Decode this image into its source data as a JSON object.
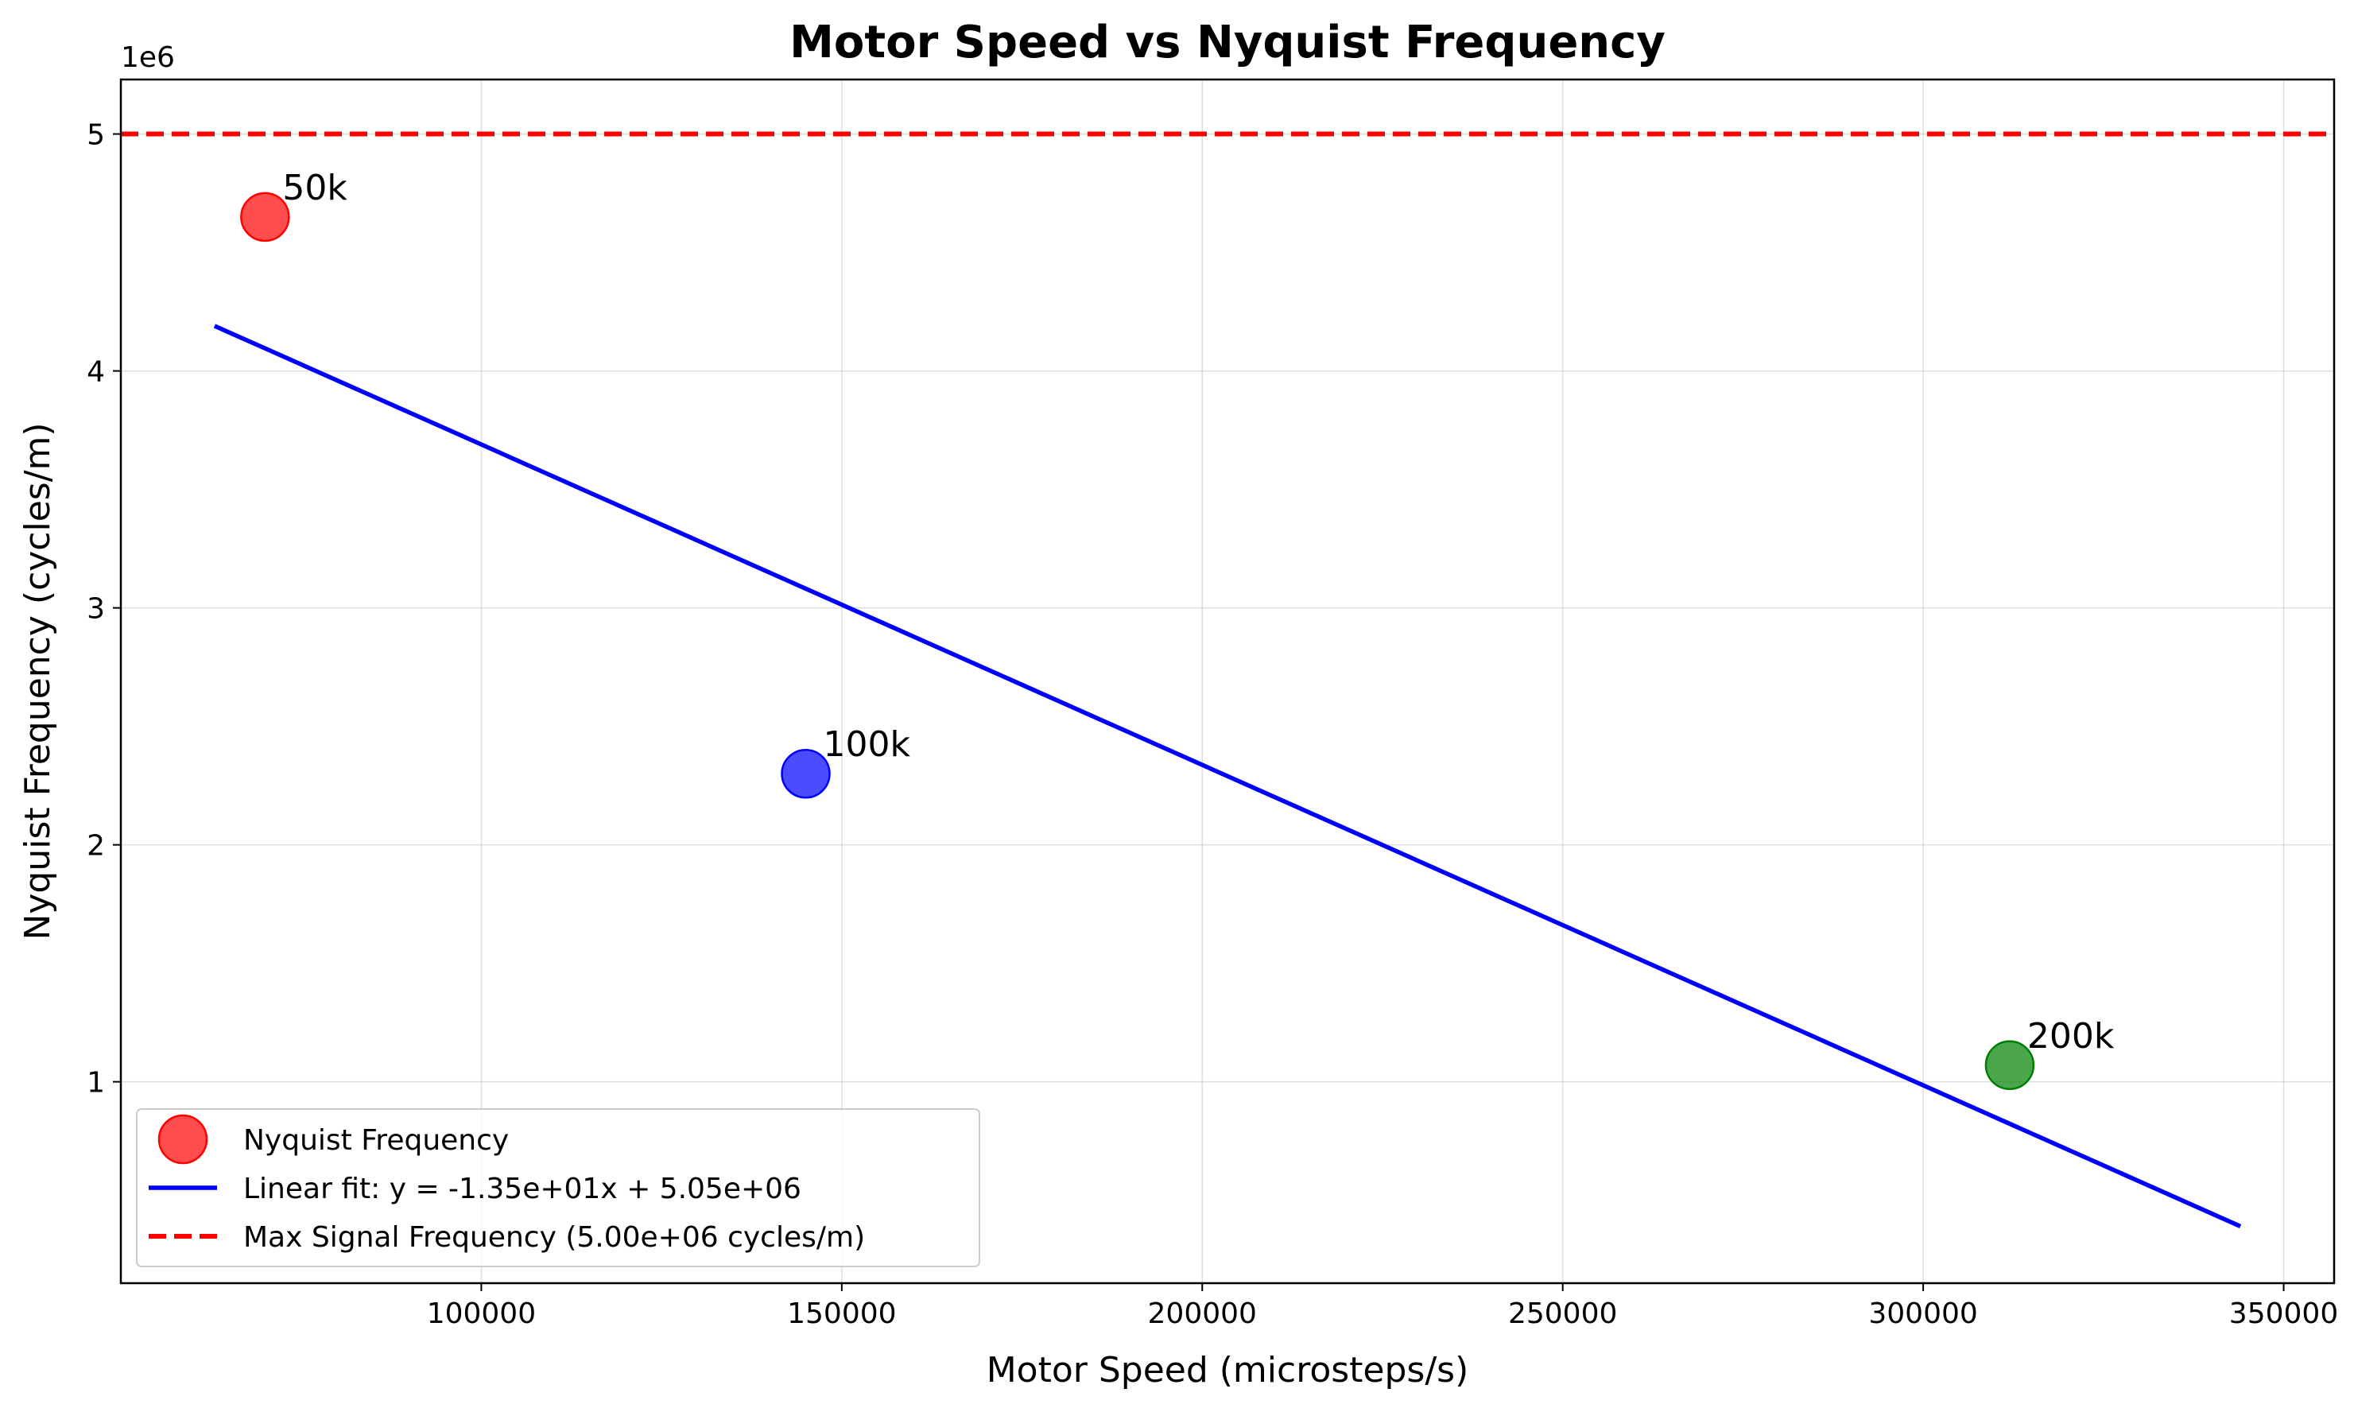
{
  "chart_data": {
    "type": "scatter",
    "title": "Motor Speed vs Nyquist Frequency",
    "xlabel": "Motor Speed (microsteps/s)",
    "ylabel": "Nyquist Frequency (cycles/m)",
    "y_offset_label": "1e6",
    "xlim": [
      50000,
      357000
    ],
    "ylim": [
      0.15,
      5.23
    ],
    "y_scale": 1000000,
    "xticks": [
      100000,
      150000,
      200000,
      250000,
      300000,
      350000
    ],
    "xtick_labels": [
      "100000",
      "150000",
      "200000",
      "250000",
      "300000",
      "350000"
    ],
    "yticks": [
      1,
      2,
      3,
      4,
      5
    ],
    "ytick_labels": [
      "1",
      "2",
      "3",
      "4",
      "5"
    ],
    "grid": true,
    "legend_position": "lower-left",
    "points": [
      {
        "x": 70000,
        "y": 4.65,
        "label": "50k",
        "color": "#ff0000"
      },
      {
        "x": 145000,
        "y": 2.3,
        "label": "100k",
        "color": "#0000ff"
      },
      {
        "x": 312000,
        "y": 1.07,
        "label": "200k",
        "color": "#008000"
      }
    ],
    "fit_line": {
      "x": [
        63000,
        344000
      ],
      "y": [
        4.19,
        0.39
      ],
      "color": "#0000ff"
    },
    "threshold": {
      "y": 5.0,
      "color": "#ff0000"
    },
    "legend": [
      {
        "label": "Nyquist Frequency",
        "kind": "marker",
        "color": "#ff0000"
      },
      {
        "label": "Linear fit: y = -1.35e+01x + 5.05e+06",
        "kind": "line",
        "color": "#0000ff"
      },
      {
        "label": "Max Signal Frequency (5.00e+06 cycles/m)",
        "kind": "dashed",
        "color": "#ff0000"
      }
    ]
  }
}
